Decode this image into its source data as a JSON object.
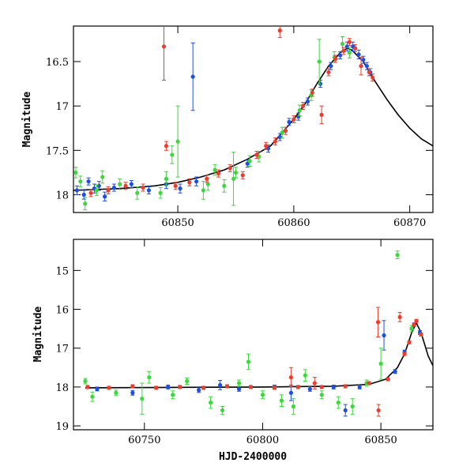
{
  "colors": {
    "blue": "#1f4fe0",
    "green": "#3cd83c",
    "red": "#ee3b2b",
    "model": "#000000"
  },
  "chart_data": [
    {
      "type": "scatter",
      "panel": "top",
      "title": "",
      "xlabel": "",
      "ylabel": "Magnitude",
      "xlim": [
        60841,
        60872
      ],
      "ylim": [
        18.2,
        16.1
      ],
      "y_inverted": true,
      "grid": false,
      "legend": "none",
      "xticks": [
        {
          "v": 60850,
          "label": "60850"
        },
        {
          "v": 60860,
          "label": "60860"
        },
        {
          "v": 60870,
          "label": "60870"
        }
      ],
      "yticks": [
        {
          "v": 16.5,
          "label": "16.5"
        },
        {
          "v": 17,
          "label": "17"
        },
        {
          "v": 17.5,
          "label": "17.5"
        },
        {
          "v": 18,
          "label": "18"
        }
      ],
      "model": {
        "x": [
          60841,
          60845,
          60848,
          60850,
          60852,
          60854,
          60856,
          60858,
          60860,
          60861,
          60862,
          60863,
          60864,
          60864.6,
          60865,
          60866,
          60867,
          60868,
          60869,
          60870,
          60871,
          60872
        ],
        "y": [
          17.95,
          17.93,
          17.9,
          17.86,
          17.8,
          17.72,
          17.6,
          17.45,
          17.15,
          16.97,
          16.75,
          16.55,
          16.4,
          16.35,
          16.37,
          16.5,
          16.72,
          16.92,
          17.1,
          17.25,
          17.37,
          17.45
        ]
      },
      "series": [
        {
          "name": "",
          "color_key": "blue",
          "points": [
            {
              "x": 60841.3,
              "y": 17.95,
              "err": 0.05
            },
            {
              "x": 60841.9,
              "y": 18.0,
              "err": 0.05
            },
            {
              "x": 60842.3,
              "y": 17.85,
              "err": 0.04
            },
            {
              "x": 60842.8,
              "y": 17.93,
              "err": 0.05
            },
            {
              "x": 60843.2,
              "y": 17.9,
              "err": 0.05
            },
            {
              "x": 60843.7,
              "y": 18.02,
              "err": 0.05
            },
            {
              "x": 60844.5,
              "y": 17.92,
              "err": 0.04
            },
            {
              "x": 60846.0,
              "y": 17.88,
              "err": 0.04
            },
            {
              "x": 60847.5,
              "y": 17.95,
              "err": 0.04
            },
            {
              "x": 60849.0,
              "y": 17.88,
              "err": 0.05
            },
            {
              "x": 60850.2,
              "y": 17.93,
              "err": 0.05
            },
            {
              "x": 60851.3,
              "y": 16.67,
              "err": 0.38
            },
            {
              "x": 60851.6,
              "y": 17.85,
              "err": 0.05
            },
            {
              "x": 60856.0,
              "y": 17.65,
              "err": 0.04
            },
            {
              "x": 60857.8,
              "y": 17.48,
              "err": 0.04
            },
            {
              "x": 60858.8,
              "y": 17.35,
              "err": 0.04
            },
            {
              "x": 60859.6,
              "y": 17.18,
              "err": 0.04
            },
            {
              "x": 60860.4,
              "y": 17.12,
              "err": 0.04
            },
            {
              "x": 60861.2,
              "y": 16.95,
              "err": 0.04
            },
            {
              "x": 60862.3,
              "y": 16.75,
              "err": 0.04
            },
            {
              "x": 60863.2,
              "y": 16.55,
              "err": 0.04
            },
            {
              "x": 60864.0,
              "y": 16.43,
              "err": 0.04
            },
            {
              "x": 60864.6,
              "y": 16.33,
              "err": 0.05
            },
            {
              "x": 60865.1,
              "y": 16.33,
              "err": 0.05
            },
            {
              "x": 60865.6,
              "y": 16.42,
              "err": 0.05
            },
            {
              "x": 60866.0,
              "y": 16.48,
              "err": 0.04
            },
            {
              "x": 60866.3,
              "y": 16.55,
              "err": 0.04
            },
            {
              "x": 60866.6,
              "y": 16.62,
              "err": 0.04
            }
          ]
        },
        {
          "name": "",
          "color_key": "green",
          "points": [
            {
              "x": 60841.2,
              "y": 17.75,
              "err": 0.06
            },
            {
              "x": 60841.6,
              "y": 17.85,
              "err": 0.06
            },
            {
              "x": 60842.0,
              "y": 18.1,
              "err": 0.07
            },
            {
              "x": 60843.0,
              "y": 17.95,
              "err": 0.06
            },
            {
              "x": 60843.5,
              "y": 17.8,
              "err": 0.07
            },
            {
              "x": 60845.0,
              "y": 17.88,
              "err": 0.06
            },
            {
              "x": 60846.5,
              "y": 17.98,
              "err": 0.07
            },
            {
              "x": 60848.5,
              "y": 17.98,
              "err": 0.06
            },
            {
              "x": 60849.0,
              "y": 17.82,
              "err": 0.08
            },
            {
              "x": 60849.5,
              "y": 17.55,
              "err": 0.1
            },
            {
              "x": 60850.0,
              "y": 17.4,
              "err": 0.4
            },
            {
              "x": 60852.2,
              "y": 17.95,
              "err": 0.1
            },
            {
              "x": 60852.6,
              "y": 17.88,
              "err": 0.07
            },
            {
              "x": 60853.2,
              "y": 17.72,
              "err": 0.06
            },
            {
              "x": 60854.0,
              "y": 17.9,
              "err": 0.07
            },
            {
              "x": 60854.8,
              "y": 17.82,
              "err": 0.3
            },
            {
              "x": 60855.0,
              "y": 17.75,
              "err": 0.06
            },
            {
              "x": 60856.2,
              "y": 17.62,
              "err": 0.06
            },
            {
              "x": 60857.0,
              "y": 17.57,
              "err": 0.06
            },
            {
              "x": 60859.0,
              "y": 17.3,
              "err": 0.06
            },
            {
              "x": 60860.5,
              "y": 17.05,
              "err": 0.06
            },
            {
              "x": 60861.5,
              "y": 16.88,
              "err": 0.06
            },
            {
              "x": 60862.2,
              "y": 16.5,
              "err": 0.25
            },
            {
              "x": 60863.5,
              "y": 16.45,
              "err": 0.06
            },
            {
              "x": 60864.2,
              "y": 16.3,
              "err": 0.08
            },
            {
              "x": 60864.8,
              "y": 16.4,
              "err": 0.06
            }
          ]
        },
        {
          "name": "",
          "color_key": "red",
          "points": [
            {
              "x": 60842.5,
              "y": 17.98,
              "err": 0.04
            },
            {
              "x": 60844.0,
              "y": 17.95,
              "err": 0.04
            },
            {
              "x": 60845.5,
              "y": 17.9,
              "err": 0.04
            },
            {
              "x": 60847.0,
              "y": 17.92,
              "err": 0.04
            },
            {
              "x": 60848.8,
              "y": 16.33,
              "err": 0.38
            },
            {
              "x": 60849.0,
              "y": 17.45,
              "err": 0.05
            },
            {
              "x": 60849.8,
              "y": 17.9,
              "err": 0.04
            },
            {
              "x": 60851.0,
              "y": 17.86,
              "err": 0.04
            },
            {
              "x": 60852.5,
              "y": 17.82,
              "err": 0.04
            },
            {
              "x": 60853.5,
              "y": 17.76,
              "err": 0.04
            },
            {
              "x": 60854.5,
              "y": 17.7,
              "err": 0.04
            },
            {
              "x": 60855.6,
              "y": 17.78,
              "err": 0.04
            },
            {
              "x": 60856.8,
              "y": 17.55,
              "err": 0.04
            },
            {
              "x": 60857.6,
              "y": 17.45,
              "err": 0.04
            },
            {
              "x": 60858.4,
              "y": 17.4,
              "err": 0.04
            },
            {
              "x": 60858.8,
              "y": 16.15,
              "err": 0.08
            },
            {
              "x": 60859.3,
              "y": 17.28,
              "err": 0.04
            },
            {
              "x": 60860.0,
              "y": 17.15,
              "err": 0.04
            },
            {
              "x": 60860.8,
              "y": 17.0,
              "err": 0.04
            },
            {
              "x": 60861.6,
              "y": 16.85,
              "err": 0.04
            },
            {
              "x": 60862.4,
              "y": 17.1,
              "err": 0.1
            },
            {
              "x": 60863.0,
              "y": 16.62,
              "err": 0.04
            },
            {
              "x": 60863.6,
              "y": 16.47,
              "err": 0.04
            },
            {
              "x": 60864.3,
              "y": 16.38,
              "err": 0.04
            },
            {
              "x": 60864.8,
              "y": 16.28,
              "err": 0.04
            },
            {
              "x": 60865.3,
              "y": 16.35,
              "err": 0.04
            },
            {
              "x": 60865.8,
              "y": 16.55,
              "err": 0.1
            },
            {
              "x": 60866.5,
              "y": 16.62,
              "err": 0.04
            },
            {
              "x": 60866.8,
              "y": 16.68,
              "err": 0.04
            }
          ]
        }
      ]
    },
    {
      "type": "scatter",
      "panel": "bottom",
      "title": "",
      "xlabel": "HJD-2400000",
      "ylabel": "Magnitude",
      "xlim": [
        60720,
        60872
      ],
      "ylim": [
        19.1,
        14.2
      ],
      "y_inverted": true,
      "grid": false,
      "legend": "none",
      "xticks": [
        {
          "v": 60750,
          "label": "60750"
        },
        {
          "v": 60800,
          "label": "60800"
        },
        {
          "v": 60850,
          "label": "60850"
        }
      ],
      "yticks": [
        {
          "v": 15,
          "label": "15"
        },
        {
          "v": 16,
          "label": "16"
        },
        {
          "v": 17,
          "label": "17"
        },
        {
          "v": 18,
          "label": "18"
        },
        {
          "v": 19,
          "label": "19"
        }
      ],
      "model": {
        "x": [
          60725,
          60760,
          60800,
          60830,
          60845,
          60852,
          60857,
          60860,
          60863,
          60865,
          60867,
          60870,
          60872
        ],
        "y": [
          18.02,
          18.01,
          18.0,
          17.98,
          17.93,
          17.8,
          17.5,
          17.15,
          16.6,
          16.35,
          16.6,
          17.2,
          17.45
        ]
      },
      "series": [
        {
          "name": "",
          "color_key": "blue",
          "points": [
            {
              "x": 60730,
              "y": 18.05,
              "err": 0.05
            },
            {
              "x": 60745,
              "y": 18.15,
              "err": 0.06
            },
            {
              "x": 60760,
              "y": 18.0,
              "err": 0.05
            },
            {
              "x": 60773,
              "y": 18.08,
              "err": 0.06
            },
            {
              "x": 60782,
              "y": 17.95,
              "err": 0.12
            },
            {
              "x": 60790,
              "y": 18.05,
              "err": 0.06
            },
            {
              "x": 60805,
              "y": 18.0,
              "err": 0.05
            },
            {
              "x": 60812,
              "y": 18.15,
              "err": 0.2
            },
            {
              "x": 60820,
              "y": 18.05,
              "err": 0.06
            },
            {
              "x": 60830,
              "y": 18.0,
              "err": 0.05
            },
            {
              "x": 60835,
              "y": 18.6,
              "err": 0.15
            },
            {
              "x": 60841,
              "y": 18.0,
              "err": 0.05
            },
            {
              "x": 60851.3,
              "y": 16.67,
              "err": 0.38
            },
            {
              "x": 60856,
              "y": 17.6,
              "err": 0.05
            },
            {
              "x": 60860,
              "y": 17.1,
              "err": 0.05
            },
            {
              "x": 60864,
              "y": 16.4,
              "err": 0.05
            },
            {
              "x": 60866.5,
              "y": 16.6,
              "err": 0.05
            }
          ]
        },
        {
          "name": "",
          "color_key": "green",
          "points": [
            {
              "x": 60725,
              "y": 17.85,
              "err": 0.07
            },
            {
              "x": 60728,
              "y": 18.25,
              "err": 0.12
            },
            {
              "x": 60738,
              "y": 18.15,
              "err": 0.07
            },
            {
              "x": 60749,
              "y": 18.3,
              "err": 0.4
            },
            {
              "x": 60752,
              "y": 17.75,
              "err": 0.15
            },
            {
              "x": 60762,
              "y": 18.2,
              "err": 0.1
            },
            {
              "x": 60768,
              "y": 17.85,
              "err": 0.08
            },
            {
              "x": 60778,
              "y": 18.4,
              "err": 0.15
            },
            {
              "x": 60783,
              "y": 18.6,
              "err": 0.1
            },
            {
              "x": 60790,
              "y": 17.9,
              "err": 0.08
            },
            {
              "x": 60794,
              "y": 17.35,
              "err": 0.2
            },
            {
              "x": 60800,
              "y": 18.2,
              "err": 0.1
            },
            {
              "x": 60808,
              "y": 18.35,
              "err": 0.15
            },
            {
              "x": 60813,
              "y": 18.5,
              "err": 0.2
            },
            {
              "x": 60818,
              "y": 17.7,
              "err": 0.15
            },
            {
              "x": 60825,
              "y": 18.2,
              "err": 0.1
            },
            {
              "x": 60832,
              "y": 18.4,
              "err": 0.15
            },
            {
              "x": 60838,
              "y": 18.5,
              "err": 0.2
            },
            {
              "x": 60844,
              "y": 17.9,
              "err": 0.08
            },
            {
              "x": 60850,
              "y": 17.4,
              "err": 0.4
            },
            {
              "x": 60857,
              "y": 14.6,
              "err": 0.1
            },
            {
              "x": 60863,
              "y": 16.5,
              "err": 0.08
            }
          ]
        },
        {
          "name": "",
          "color_key": "red",
          "points": [
            {
              "x": 60726,
              "y": 18.0,
              "err": 0.04
            },
            {
              "x": 60735,
              "y": 18.02,
              "err": 0.04
            },
            {
              "x": 60745,
              "y": 17.98,
              "err": 0.04
            },
            {
              "x": 60755,
              "y": 18.02,
              "err": 0.04
            },
            {
              "x": 60765,
              "y": 18.0,
              "err": 0.04
            },
            {
              "x": 60775,
              "y": 18.02,
              "err": 0.04
            },
            {
              "x": 60785,
              "y": 17.98,
              "err": 0.04
            },
            {
              "x": 60795,
              "y": 18.0,
              "err": 0.04
            },
            {
              "x": 60805,
              "y": 18.02,
              "err": 0.04
            },
            {
              "x": 60812,
              "y": 17.75,
              "err": 0.25
            },
            {
              "x": 60815,
              "y": 18.0,
              "err": 0.04
            },
            {
              "x": 60822,
              "y": 17.9,
              "err": 0.15
            },
            {
              "x": 60825,
              "y": 18.0,
              "err": 0.04
            },
            {
              "x": 60835,
              "y": 17.98,
              "err": 0.04
            },
            {
              "x": 60845,
              "y": 17.9,
              "err": 0.04
            },
            {
              "x": 60848.8,
              "y": 16.33,
              "err": 0.38
            },
            {
              "x": 60849,
              "y": 18.6,
              "err": 0.15
            },
            {
              "x": 60853,
              "y": 17.8,
              "err": 0.04
            },
            {
              "x": 60858,
              "y": 16.2,
              "err": 0.12
            },
            {
              "x": 60860,
              "y": 17.15,
              "err": 0.04
            },
            {
              "x": 60862,
              "y": 16.85,
              "err": 0.04
            },
            {
              "x": 60864,
              "y": 16.4,
              "err": 0.04
            },
            {
              "x": 60865,
              "y": 16.3,
              "err": 0.04
            },
            {
              "x": 60867,
              "y": 16.65,
              "err": 0.04
            }
          ]
        }
      ]
    }
  ]
}
